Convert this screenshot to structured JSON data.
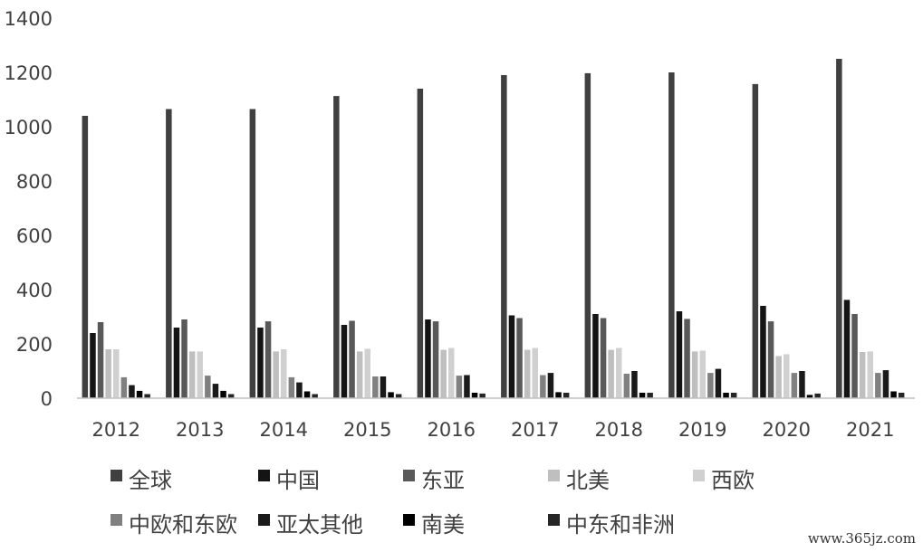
{
  "chart_data": {
    "type": "bar",
    "categories": [
      "2012",
      "2013",
      "2014",
      "2015",
      "2016",
      "2017",
      "2018",
      "2019",
      "2020",
      "2021"
    ],
    "series": [
      {
        "name": "全球",
        "color": "#404040",
        "values": [
          1040,
          1065,
          1065,
          1113,
          1140,
          1190,
          1197,
          1200,
          1157,
          1250
        ]
      },
      {
        "name": "中国",
        "color": "#141414",
        "values": [
          240,
          260,
          260,
          270,
          290,
          305,
          310,
          320,
          340,
          362
        ]
      },
      {
        "name": "东亚",
        "color": "#595959",
        "values": [
          280,
          290,
          283,
          285,
          283,
          295,
          295,
          292,
          283,
          310
        ]
      },
      {
        "name": "北美",
        "color": "#bfbfbf",
        "values": [
          180,
          172,
          172,
          172,
          178,
          178,
          178,
          172,
          155,
          170
        ]
      },
      {
        "name": "西欧",
        "color": "#d0d0d0",
        "values": [
          180,
          172,
          180,
          182,
          185,
          185,
          185,
          175,
          162,
          172
        ]
      },
      {
        "name": "中欧和东欧",
        "color": "#808080",
        "values": [
          77,
          83,
          77,
          80,
          83,
          85,
          90,
          93,
          93,
          93
        ]
      },
      {
        "name": "亚太其他",
        "color": "#1a1a1a",
        "values": [
          48,
          53,
          58,
          80,
          85,
          93,
          100,
          108,
          100,
          103
        ]
      },
      {
        "name": "南美",
        "color": "#000000",
        "values": [
          27,
          27,
          25,
          22,
          20,
          22,
          20,
          20,
          12,
          25
        ]
      },
      {
        "name": "中东和非洲",
        "color": "#262626",
        "values": [
          15,
          15,
          15,
          15,
          17,
          20,
          20,
          20,
          17,
          20
        ]
      }
    ],
    "ylim": [
      0,
      1400
    ],
    "yticks": [
      "0",
      "200",
      "400",
      "600",
      "800",
      "1000",
      "1200",
      "1400"
    ],
    "grid": false,
    "legend_position": "bottom"
  },
  "watermark": "www.365jz.com"
}
